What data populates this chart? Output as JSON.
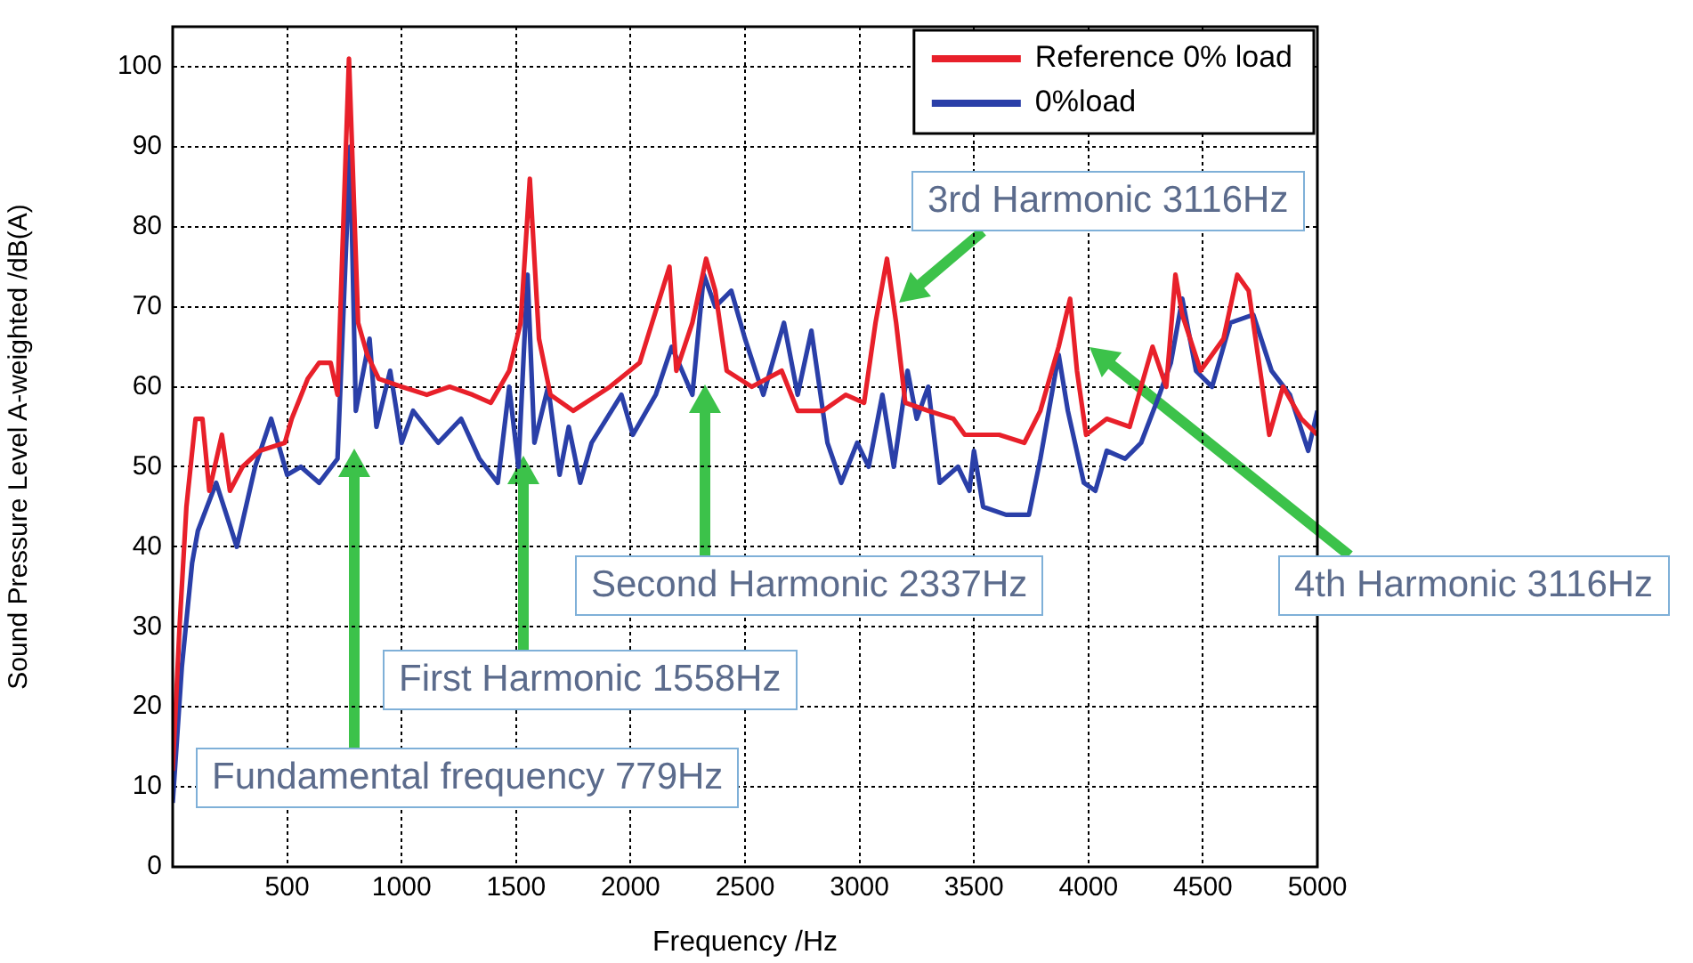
{
  "chart_data": {
    "type": "line",
    "xlabel": "Frequency /Hz",
    "ylabel": "Sound Pressure Level A-weighted /dB(A)",
    "xlim": [
      0,
      5000
    ],
    "xticks": [
      500,
      1000,
      1500,
      2000,
      2500,
      3000,
      3500,
      4000,
      4500,
      5000
    ],
    "ylim": [
      0,
      105
    ],
    "yticks": [
      0,
      10,
      20,
      30,
      40,
      50,
      60,
      70,
      80,
      90,
      100
    ],
    "grid": true,
    "legend": "top right",
    "marker": "none",
    "line_style": "solid",
    "series": [
      {
        "name": "Reference 0% load",
        "color": "#e8202a",
        "x": [
          0,
          30,
          60,
          100,
          130,
          160,
          215,
          250,
          305,
          380,
          490,
          520,
          590,
          640,
          690,
          720,
          770,
          810,
          850,
          900,
          1000,
          1110,
          1210,
          1310,
          1390,
          1470,
          1520,
          1560,
          1600,
          1650,
          1750,
          1910,
          2040,
          2170,
          2200,
          2270,
          2330,
          2370,
          2420,
          2530,
          2660,
          2730,
          2840,
          2940,
          3020,
          3070,
          3120,
          3160,
          3200,
          3300,
          3410,
          3460,
          3540,
          3610,
          3720,
          3790,
          3870,
          3920,
          3950,
          3990,
          4080,
          4180,
          4280,
          4340,
          4380,
          4410,
          4490,
          4590,
          4650,
          4700,
          4750,
          4790,
          4850,
          4930,
          5000
        ],
        "values": [
          12,
          30,
          45,
          56,
          56,
          47,
          54,
          47,
          50,
          52,
          53,
          56,
          61,
          63,
          63,
          59,
          101,
          68,
          64,
          61,
          60,
          59,
          60,
          59,
          58,
          62,
          68,
          86,
          66,
          59,
          57,
          60,
          63,
          75,
          62,
          68,
          76,
          72,
          62,
          60,
          62,
          57,
          57,
          59,
          58,
          68,
          76,
          68,
          58,
          57,
          56,
          54,
          54,
          54,
          53,
          57,
          65,
          71,
          62,
          54,
          56,
          55,
          65,
          60,
          74,
          69,
          62,
          66,
          74,
          72,
          62,
          54,
          60,
          56,
          54
        ]
      },
      {
        "name": "0%load",
        "color": "#2a3fa8",
        "x": [
          0,
          40,
          85,
          110,
          190,
          280,
          360,
          430,
          500,
          560,
          640,
          720,
          775,
          800,
          860,
          890,
          950,
          1000,
          1050,
          1160,
          1260,
          1340,
          1420,
          1470,
          1510,
          1550,
          1580,
          1640,
          1690,
          1730,
          1780,
          1830,
          1960,
          2010,
          2110,
          2180,
          2270,
          2320,
          2370,
          2440,
          2500,
          2580,
          2670,
          2730,
          2790,
          2860,
          2920,
          2990,
          3040,
          3100,
          3150,
          3210,
          3250,
          3300,
          3350,
          3430,
          3480,
          3500,
          3540,
          3640,
          3740,
          3790,
          3870,
          3910,
          3980,
          4030,
          4080,
          4160,
          4230,
          4310,
          4360,
          4410,
          4470,
          4540,
          4620,
          4720,
          4800,
          4880,
          4960,
          5000
        ],
        "values": [
          8,
          25,
          38,
          42,
          48,
          40,
          50,
          56,
          49,
          50,
          48,
          51,
          90,
          57,
          66,
          55,
          62,
          53,
          57,
          53,
          56,
          51,
          48,
          60,
          50,
          74,
          53,
          60,
          49,
          55,
          48,
          53,
          59,
          54,
          59,
          65,
          59,
          74,
          70,
          72,
          66,
          59,
          68,
          59,
          67,
          53,
          48,
          53,
          50,
          59,
          50,
          62,
          56,
          60,
          48,
          50,
          47,
          52,
          45,
          44,
          44,
          51,
          64,
          57,
          48,
          47,
          52,
          51,
          53,
          59,
          63,
          71,
          62,
          60,
          68,
          69,
          62,
          59,
          52,
          57
        ]
      }
    ],
    "annotations": [
      "Fundamental frequency 779Hz",
      "First Harmonic 1558Hz",
      "Second Harmonic 2337Hz",
      "3rd Harmonic 3116Hz",
      "4th Harmonic 3116Hz"
    ]
  }
}
